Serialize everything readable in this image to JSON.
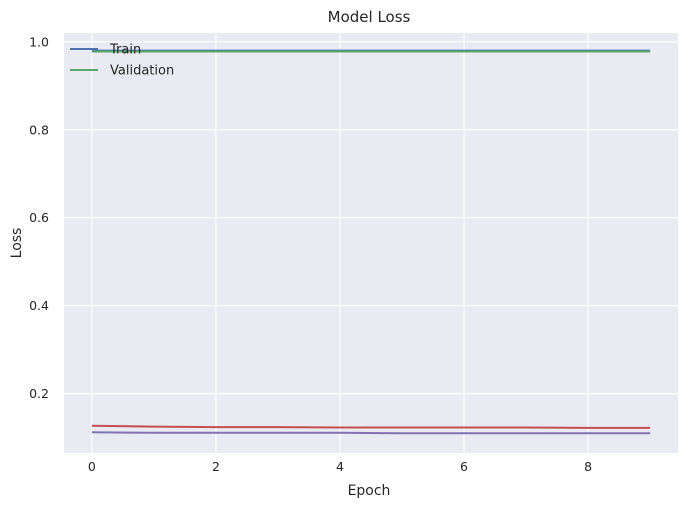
{
  "chart_data": {
    "type": "line",
    "title": "Model Loss",
    "xlabel": "Epoch",
    "ylabel": "Loss",
    "xlim": [
      -0.45,
      9.45
    ],
    "ylim": [
      0.065,
      1.02
    ],
    "xticks": [
      0,
      2,
      4,
      6,
      8
    ],
    "yticks": [
      0.2,
      0.4,
      0.6,
      0.8,
      1.0
    ],
    "xtick_labels": [
      "0",
      "2",
      "4",
      "6",
      "8"
    ],
    "ytick_labels": [
      "0.2",
      "0.4",
      "0.6",
      "0.8",
      "1.0"
    ],
    "grid": true,
    "legend_position": "top-left",
    "x": [
      0,
      1,
      2,
      3,
      4,
      5,
      6,
      7,
      8,
      9
    ],
    "series": [
      {
        "name": "Train",
        "color": "#4C72B0",
        "values": [
          0.98,
          0.98,
          0.98,
          0.98,
          0.98,
          0.98,
          0.98,
          0.98,
          0.98,
          0.98
        ],
        "in_legend": true
      },
      {
        "name": "Validation",
        "color": "#55A868",
        "values": [
          0.978,
          0.978,
          0.978,
          0.978,
          0.978,
          0.978,
          0.978,
          0.978,
          0.978,
          0.978
        ],
        "in_legend": true
      },
      {
        "color": "#C44E52",
        "values": [
          0.127,
          0.125,
          0.124,
          0.124,
          0.123,
          0.123,
          0.123,
          0.123,
          0.122,
          0.122
        ],
        "in_legend": false
      },
      {
        "color": "#8172B2",
        "values": [
          0.112,
          0.111,
          0.111,
          0.111,
          0.111,
          0.11,
          0.11,
          0.11,
          0.11,
          0.11
        ],
        "in_legend": false
      }
    ]
  }
}
